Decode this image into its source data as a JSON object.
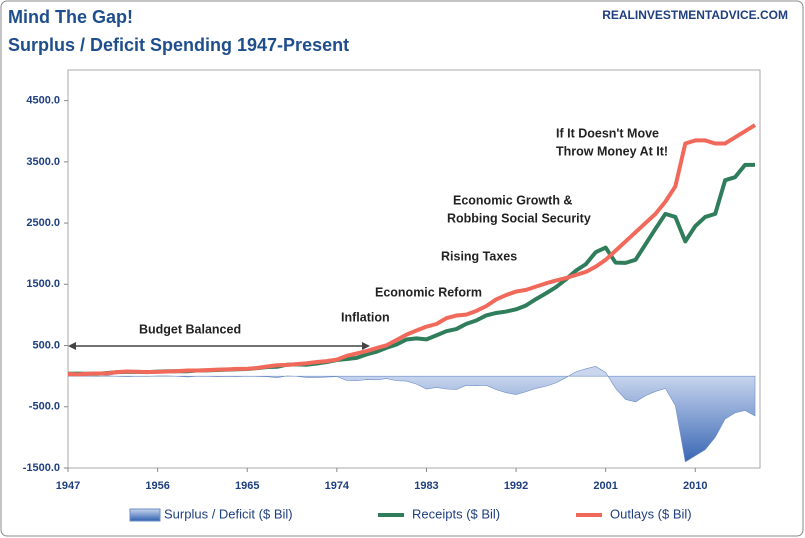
{
  "chart_data": {
    "type": "line",
    "title": "Mind The Gap!",
    "subtitle": "Surplus / Deficit Spending 1947-Present",
    "source": "REALINVESTMENTADVICE.COM",
    "annotations": [
      "Budget Balanced",
      "Inflation",
      "Economic Reform",
      "Rising Taxes",
      "Economic Growth &",
      "Robbing Social Security",
      "If It Doesn't Move",
      "Throw Money At It!"
    ],
    "x": [
      1947,
      1948,
      1949,
      1950,
      1951,
      1952,
      1953,
      1954,
      1955,
      1956,
      1957,
      1958,
      1959,
      1960,
      1961,
      1962,
      1963,
      1964,
      1965,
      1966,
      1967,
      1968,
      1969,
      1970,
      1971,
      1972,
      1973,
      1974,
      1975,
      1976,
      1977,
      1978,
      1979,
      1980,
      1981,
      1982,
      1983,
      1984,
      1985,
      1986,
      1987,
      1988,
      1989,
      1990,
      1991,
      1992,
      1993,
      1994,
      1995,
      1996,
      1997,
      1998,
      1999,
      2000,
      2001,
      2002,
      2003,
      2004,
      2005,
      2006,
      2007,
      2008,
      2009,
      2010,
      2011,
      2012,
      2013,
      2014,
      2015,
      2016
    ],
    "xlim": [
      1947,
      2016.5
    ],
    "xticks": [
      1947,
      1956,
      1965,
      1974,
      1983,
      1992,
      2001,
      2010
    ],
    "ylim": [
      -1500,
      5000
    ],
    "yticks": [
      {
        "value": -1500,
        "label": "-1500.0"
      },
      {
        "value": -500,
        "label": "-500.0"
      },
      {
        "value": 500,
        "label": "500.0"
      },
      {
        "value": 1500,
        "label": "1500.0"
      },
      {
        "value": 2500,
        "label": "2500.0"
      },
      {
        "value": 3500,
        "label": "3500.0"
      },
      {
        "value": 4500,
        "label": "4500.0"
      }
    ],
    "series": [
      {
        "name": "Surplus / Deficit ($ Bil)",
        "color": "#4a76bf",
        "style": "area",
        "values": [
          4,
          12,
          1,
          -3,
          6,
          -2,
          -7,
          -1,
          -3,
          4,
          3,
          -3,
          -13,
          0,
          -3,
          -7,
          -5,
          -6,
          -1,
          -4,
          -9,
          -25,
          3,
          -3,
          -23,
          -23,
          -15,
          -6,
          -70,
          -75,
          -55,
          -60,
          -40,
          -75,
          -80,
          -130,
          -210,
          -185,
          -210,
          -220,
          -150,
          -155,
          -150,
          -220,
          -270,
          -300,
          -255,
          -200,
          -165,
          -110,
          -25,
          70,
          120,
          160,
          60,
          -200,
          -380,
          -420,
          -320,
          -250,
          -200,
          -480,
          -1400,
          -1300,
          -1200,
          -1000,
          -700,
          -600,
          -560,
          -650
        ]
      },
      {
        "name": "Receipts ($ Bil)",
        "color": "#2f7d5a",
        "style": "line",
        "values": [
          38.5,
          41.6,
          39.4,
          39.4,
          51.6,
          66.2,
          69.6,
          69.7,
          65.5,
          74.6,
          80.0,
          79.6,
          79.2,
          92.5,
          94.4,
          99.7,
          106.6,
          112.6,
          116.8,
          130.8,
          148.8,
          153.0,
          186.9,
          192.8,
          187.1,
          207.3,
          230.8,
          263.2,
          279.1,
          298.1,
          355.6,
          399.6,
          463.3,
          517.1,
          599.3,
          617.8,
          600.6,
          666.4,
          734.0,
          769.2,
          854.3,
          909.2,
          991.1,
          1032.0,
          1055.0,
          1091.2,
          1154.3,
          1258.6,
          1351.8,
          1453.1,
          1579.2,
          1721.7,
          1827.5,
          2025.2,
          2100,
          1853.1,
          1850,
          1900,
          2153.6,
          2406.9,
          2650,
          2600,
          2200,
          2450,
          2600,
          2650,
          3200,
          3250,
          3450,
          3450
        ]
      },
      {
        "name": "Outlays ($ Bil)",
        "color": "#f0695a",
        "style": "line",
        "values": [
          34.5,
          29.8,
          38.8,
          42.6,
          45.5,
          67.7,
          76.1,
          70.9,
          68.4,
          70.6,
          76.6,
          82.4,
          92.1,
          92.2,
          97.7,
          106.8,
          111.3,
          118.5,
          118.2,
          134.5,
          157.5,
          178.1,
          183.6,
          195.6,
          210.2,
          230.7,
          245.7,
          269.4,
          332.3,
          371.8,
          409.2,
          458.7,
          504.0,
          590.9,
          678.2,
          745.7,
          808.4,
          851.8,
          946.3,
          990.4,
          1004.0,
          1064.4,
          1143.7,
          1253.0,
          1324.2,
          1381.5,
          1409.4,
          1461.8,
          1515.7,
          1560.5,
          1601.1,
          1652.5,
          1701.8,
          1789.0,
          1900,
          2050,
          2200,
          2350,
          2500,
          2650,
          2850,
          3100,
          3800,
          3850,
          3850,
          3800,
          3800,
          3900,
          4000,
          4100
        ]
      }
    ]
  }
}
